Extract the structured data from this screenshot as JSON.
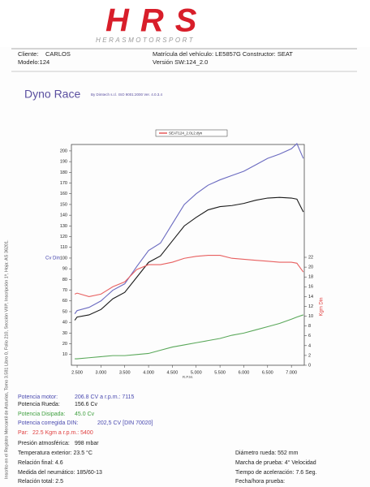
{
  "header": {
    "logo": "HRS",
    "logo_subtitle": "HERASMOTORSPORT",
    "client_label": "Cliente:",
    "client": "CARLOS",
    "model": "Modelo:124",
    "plate": "Matrícula del vehículo: LE5857G Constructor: SEAT",
    "version": "Versión SW:124_2.0"
  },
  "side_note": "Inscrito en el Registro Mercantil de Asturias, Tomo 3.581 Libro 0, Folio 210, Sección VIIIª, Inscripción 1ª, Hoja: AS 36201.",
  "report": {
    "title": "Dyno Race",
    "subtitle": "By Dimtech s.r.l. ISO 9001:2000  Ver. 4.0.3.4"
  },
  "chart_data": {
    "type": "line",
    "legend": "SEAT124_2.0L2.dyn",
    "legend_color": "#e03030",
    "x_label": "R.P.M.",
    "y_label": "Cv Din",
    "y2_label": "Kgm Din",
    "x": [
      2450,
      2500,
      2750,
      3000,
      3250,
      3500,
      3750,
      4000,
      4250,
      4500,
      4750,
      5000,
      5250,
      5500,
      5750,
      6000,
      6250,
      6500,
      6750,
      7000,
      7115,
      7250
    ],
    "series": [
      {
        "color": "#6a6ac0",
        "values": [
          48,
          51,
          54,
          60,
          70,
          76,
          92,
          107,
          114,
          132,
          150,
          160,
          168,
          173,
          177,
          181,
          187,
          193,
          197,
          202,
          206.8,
          193
        ]
      },
      {
        "color": "#1a1a1a",
        "values": [
          42,
          45,
          47,
          52,
          62,
          68,
          82,
          96,
          102,
          116,
          130,
          138,
          145,
          148,
          149,
          151,
          154,
          156,
          156.6,
          156,
          155,
          143
        ]
      },
      {
        "color": "#5aa85a",
        "values": [
          6,
          6,
          7,
          8,
          9,
          9,
          10,
          11,
          14,
          17,
          19,
          21,
          23,
          25,
          28,
          30,
          33,
          36,
          39,
          43,
          45,
          47
        ]
      },
      {
        "color": "#e86060",
        "axis": "y2",
        "values": [
          14.5,
          14.7,
          14,
          14.5,
          16,
          17,
          19.5,
          20.5,
          20.5,
          21,
          21.8,
          22.2,
          22.4,
          22.4,
          21.8,
          21.6,
          21.4,
          21.2,
          21,
          21,
          20.8,
          19
        ]
      }
    ],
    "xlim": [
      2380,
      7270
    ],
    "xticks": [
      {
        "value": 2500,
        "label": "2.500"
      },
      {
        "value": 3000,
        "label": "3.000"
      },
      {
        "value": 3500,
        "label": "3.500"
      },
      {
        "value": 4000,
        "label": "4.000"
      },
      {
        "value": 4500,
        "label": "4.500"
      },
      {
        "value": 5000,
        "label": "5.000"
      },
      {
        "value": 5500,
        "label": "5.500"
      },
      {
        "value": 6000,
        "label": "6.000"
      },
      {
        "value": 6500,
        "label": "6.500"
      },
      {
        "value": 7000,
        "label": "7.000"
      }
    ],
    "ylim": [
      0,
      206
    ],
    "yticks": [
      10,
      20,
      30,
      40,
      50,
      60,
      70,
      80,
      90,
      100,
      110,
      120,
      130,
      140,
      150,
      160,
      170,
      180,
      190,
      200
    ],
    "y2lim": [
      0,
      45
    ],
    "y2ticks": [
      0,
      2,
      4,
      6,
      8,
      10,
      12,
      14,
      16,
      18,
      20,
      22
    ]
  },
  "results": [
    {
      "label": "Potencia motor:",
      "value": "206.8 CV a r.p.m.: 7115",
      "color": "#4a4ab0"
    },
    {
      "label": "Potencia Rueda:",
      "value": "156.6 Cv",
      "color": "#222222"
    },
    {
      "label": "Potencia Disipada:",
      "value": "45.0 Cv",
      "color": "#40a040"
    },
    {
      "label": "Potencia corregida DIN:",
      "value": "202,5 CV  [DIN 70020]",
      "color": "#4a4ab0"
    },
    {
      "label": "Par:",
      "value": "22.5  Kgm a r.p.m.: 5400",
      "color": "#e04040"
    },
    {
      "label": "Presión atmosférica:",
      "value": "998 mbar",
      "color": "#222222"
    }
  ],
  "details_left": [
    "Temperatura exterior:  23.5 °C",
    "Relación final: 4.6",
    "Medida del neumático:  185/60-13",
    "Relación total: 2.5"
  ],
  "details_right": [
    "Diámetro rueda:  552 mm",
    "Marcha de prueba:  4° Velocidad",
    "Tiempo de aceleración: 7.6 Seg.",
    "Fecha/hora prueba:"
  ]
}
